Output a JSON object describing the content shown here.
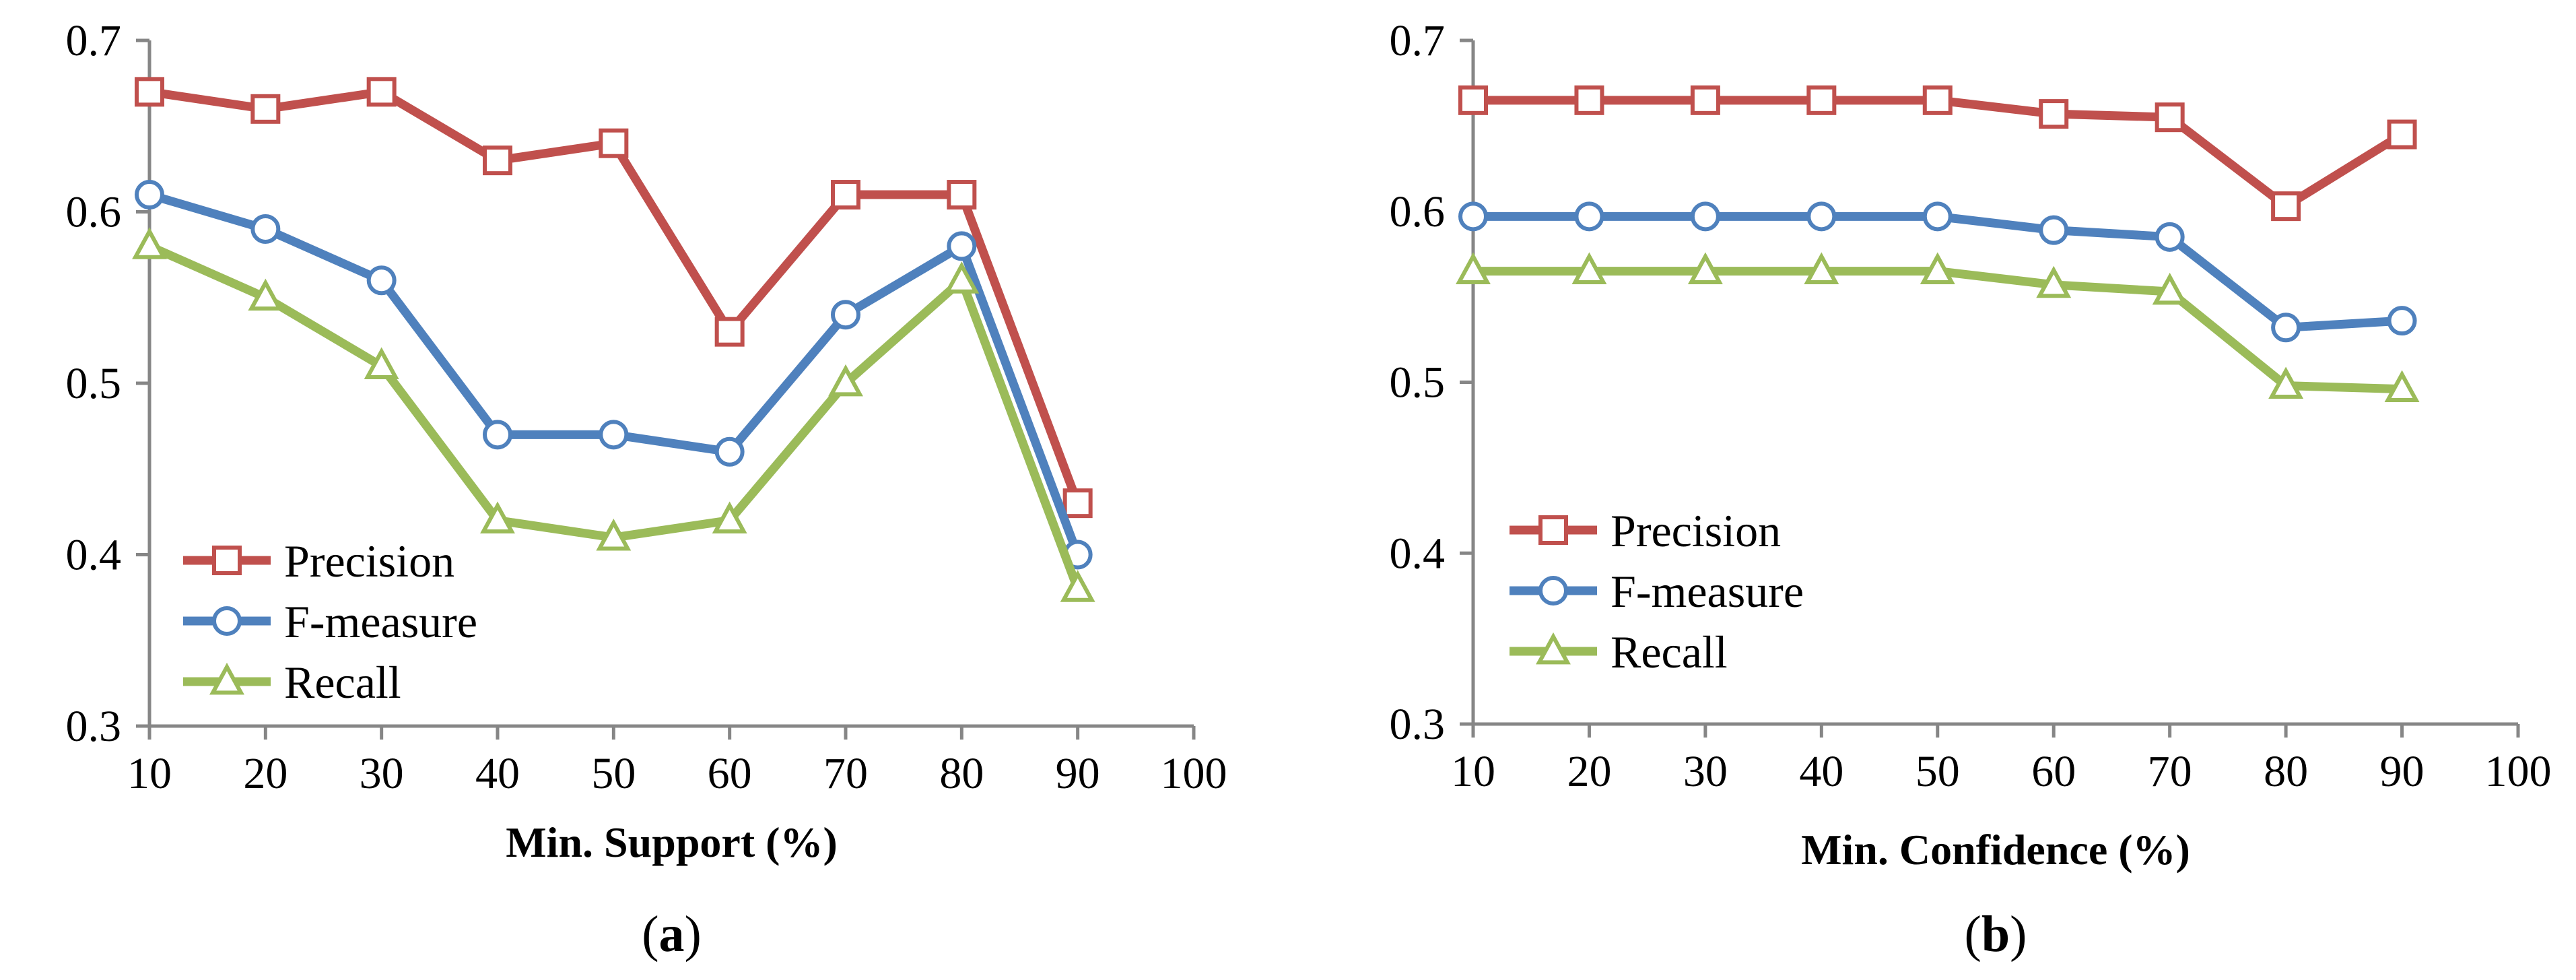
{
  "chart_data": [
    {
      "type": "line",
      "panel_label": {
        "open": "(",
        "letter": "a",
        "close": ")"
      },
      "xlabel": "Min. Support (%)",
      "ylabel": "",
      "title": "",
      "x": [
        10,
        20,
        30,
        40,
        50,
        60,
        70,
        80,
        90
      ],
      "x_ticks": [
        "10",
        "20",
        "30",
        "40",
        "50",
        "60",
        "70",
        "80",
        "90",
        "100"
      ],
      "y_ticks": [
        "0.3",
        "0.4",
        "0.5",
        "0.6",
        "0.7"
      ],
      "xlim": [
        10,
        100
      ],
      "ylim": [
        0.3,
        0.7
      ],
      "grid": false,
      "legend_position": "bottom-left",
      "series": [
        {
          "name": "Precision",
          "color": "#c0504d",
          "marker": "square",
          "values": [
            0.67,
            0.66,
            0.67,
            0.63,
            0.64,
            0.53,
            0.61,
            0.61,
            0.43
          ]
        },
        {
          "name": "F-measure",
          "color": "#4f81bd",
          "marker": "circle",
          "values": [
            0.61,
            0.59,
            0.56,
            0.47,
            0.47,
            0.46,
            0.54,
            0.58,
            0.4
          ]
        },
        {
          "name": "Recall",
          "color": "#9bbb59",
          "marker": "triangle",
          "values": [
            0.58,
            0.55,
            0.51,
            0.42,
            0.41,
            0.42,
            0.5,
            0.56,
            0.38
          ]
        }
      ]
    },
    {
      "type": "line",
      "panel_label": {
        "open": "(",
        "letter": "b",
        "close": ")"
      },
      "xlabel": "Min. Confidence (%)",
      "ylabel": "",
      "title": "",
      "x": [
        10,
        20,
        30,
        40,
        50,
        60,
        70,
        80,
        90
      ],
      "x_ticks": [
        "10",
        "20",
        "30",
        "40",
        "50",
        "60",
        "70",
        "80",
        "90",
        "100"
      ],
      "y_ticks": [
        "0.3",
        "0.4",
        "0.5",
        "0.6",
        "0.7"
      ],
      "xlim": [
        10,
        100
      ],
      "ylim": [
        0.3,
        0.7
      ],
      "grid": false,
      "legend_position": "middle-left",
      "series": [
        {
          "name": "Precision",
          "color": "#c0504d",
          "marker": "square",
          "values": [
            0.665,
            0.665,
            0.665,
            0.665,
            0.665,
            0.657,
            0.655,
            0.603,
            0.645
          ]
        },
        {
          "name": "F-measure",
          "color": "#4f81bd",
          "marker": "circle",
          "values": [
            0.597,
            0.597,
            0.597,
            0.597,
            0.597,
            0.589,
            0.585,
            0.532,
            0.536
          ]
        },
        {
          "name": "Recall",
          "color": "#9bbb59",
          "marker": "triangle",
          "values": [
            0.565,
            0.565,
            0.565,
            0.565,
            0.565,
            0.557,
            0.553,
            0.498,
            0.496
          ]
        }
      ]
    }
  ]
}
